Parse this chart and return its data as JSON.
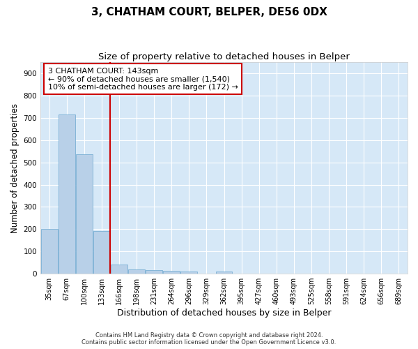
{
  "title": "3, CHATHAM COURT, BELPER, DE56 0DX",
  "subtitle": "Size of property relative to detached houses in Belper",
  "xlabel": "Distribution of detached houses by size in Belper",
  "ylabel": "Number of detached properties",
  "bar_labels": [
    "35sqm",
    "67sqm",
    "100sqm",
    "133sqm",
    "166sqm",
    "198sqm",
    "231sqm",
    "264sqm",
    "296sqm",
    "329sqm",
    "362sqm",
    "395sqm",
    "427sqm",
    "460sqm",
    "493sqm",
    "525sqm",
    "558sqm",
    "591sqm",
    "624sqm",
    "656sqm",
    "689sqm"
  ],
  "bar_values": [
    200,
    715,
    535,
    193,
    42,
    20,
    15,
    13,
    10,
    0,
    9,
    0,
    0,
    0,
    0,
    0,
    0,
    0,
    0,
    0,
    0
  ],
  "bar_color": "#b8d0e8",
  "bar_edge_color": "#7aafd4",
  "annotation_line1": "3 CHATHAM COURT: 143sqm",
  "annotation_line2": "← 90% of detached houses are smaller (1,540)",
  "annotation_line3": "10% of semi-detached houses are larger (172) →",
  "annotation_box_color": "#ffffff",
  "annotation_box_edge": "#cc0000",
  "red_line_color": "#cc0000",
  "ylim": [
    0,
    950
  ],
  "yticks": [
    0,
    100,
    200,
    300,
    400,
    500,
    600,
    700,
    800,
    900
  ],
  "background_color": "#d6e8f7",
  "grid_color": "#ffffff",
  "footer_line1": "Contains HM Land Registry data © Crown copyright and database right 2024.",
  "footer_line2": "Contains public sector information licensed under the Open Government Licence v3.0.",
  "title_fontsize": 11,
  "subtitle_fontsize": 9.5,
  "tick_fontsize": 7,
  "ylabel_fontsize": 8.5,
  "xlabel_fontsize": 9
}
